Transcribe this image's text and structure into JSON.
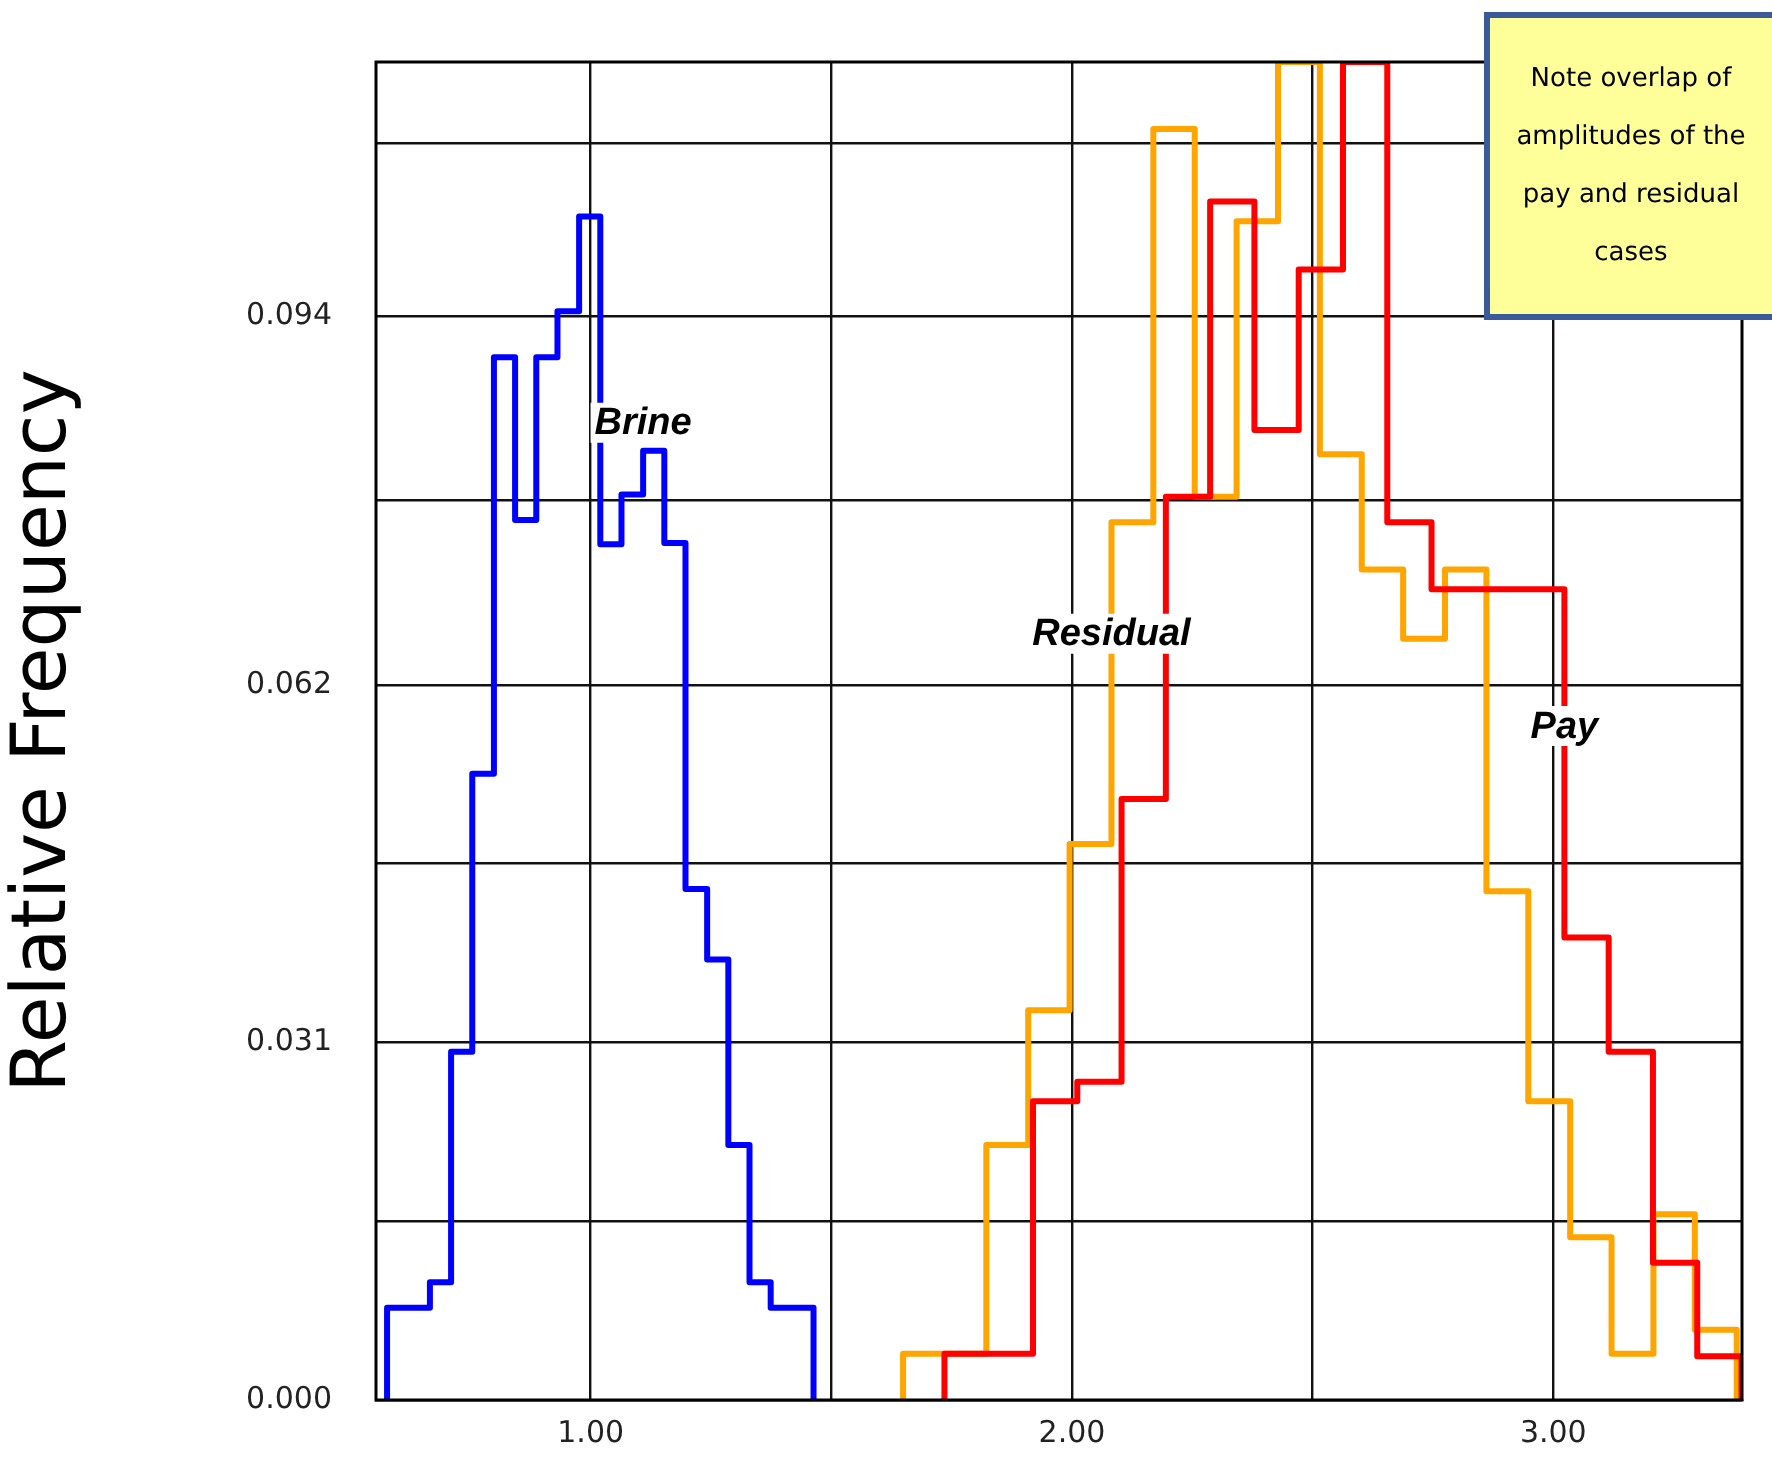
{
  "chart_data": {
    "type": "step",
    "ylabel": "Relative Frequency",
    "xlim": [
      0.554,
      3.392
    ],
    "xticks": [
      {
        "value": 1,
        "label": "1.00"
      },
      {
        "value": 1.5,
        "label": null
      },
      {
        "value": 2,
        "label": "2.00"
      },
      {
        "value": 2.5,
        "label": null
      },
      {
        "value": 3,
        "label": "3.00"
      }
    ],
    "ylim": [
      0,
      0.116
    ],
    "yticks": [
      {
        "value": 0,
        "label": "0.000"
      },
      {
        "value": 0.0155,
        "label": null
      },
      0.031,
      {
        "value": 0.0465,
        "label": null
      },
      0.062,
      {
        "value": 0.078,
        "label": null
      },
      0.094,
      {
        "value": 0.109,
        "label": null
      }
    ],
    "grid": true,
    "legend": false,
    "marker": "none",
    "series": [
      {
        "color": "#0000ff",
        "x": [
          0.577,
          0.577,
          0.621,
          0.666,
          0.71,
          0.754,
          0.799,
          0.843,
          0.887,
          0.931,
          0.976,
          1.02,
          1.064,
          1.109,
          1.153,
          1.197,
          1.242,
          1.286,
          1.33,
          1.374,
          1.419,
          1.463
        ],
        "values": [
          0,
          0.008,
          0.008,
          0.0102,
          0.0302,
          0.0543,
          0.0904,
          0.0763,
          0.0904,
          0.0944,
          0.1026,
          0.0742,
          0.0785,
          0.0823,
          0.0743,
          0.0443,
          0.0382,
          0.0221,
          0.0102,
          0.008,
          0.008,
          0
        ]
      },
      {
        "color": "#ffa500",
        "x": [
          1.649,
          1.649,
          1.736,
          1.822,
          1.909,
          1.995,
          2.082,
          2.169,
          2.255,
          2.342,
          2.428,
          2.515,
          2.602,
          2.688,
          2.775,
          2.861,
          2.948,
          3.035,
          3.121,
          3.208,
          3.294,
          3.381
        ],
        "values": [
          0,
          0.004,
          0.004,
          0.0221,
          0.0338,
          0.0482,
          0.0761,
          0.1102,
          0.0783,
          0.1022,
          0.116,
          0.082,
          0.072,
          0.066,
          0.072,
          0.0441,
          0.0259,
          0.0141,
          0.004,
          0.0161,
          0.0061,
          0
        ]
      },
      {
        "color": "#ff0000",
        "x": [
          1.735,
          1.735,
          1.827,
          1.919,
          2.011,
          2.103,
          2.195,
          2.287,
          2.379,
          2.471,
          2.563,
          2.655,
          2.747,
          2.839,
          2.931,
          3.023,
          3.115,
          3.207,
          3.299,
          3.391
        ],
        "values": [
          0,
          0.004,
          0.004,
          0.0259,
          0.0276,
          0.0521,
          0.0783,
          0.1039,
          0.0841,
          0.098,
          0.116,
          0.0761,
          0.0703,
          0.0703,
          0.0703,
          0.0401,
          0.0302,
          0.0119,
          0.0038,
          0
        ]
      }
    ],
    "annotations": [
      {
        "text": "Brine",
        "x": 1.109,
        "y": 0.0823
      },
      {
        "text": "Residual",
        "x": 2.082,
        "y": 0.064
      },
      {
        "text": "Pay",
        "x": 3.023,
        "y": 0.056
      },
      "Note overlap of amplitudes of the pay and residual cases"
    ]
  }
}
